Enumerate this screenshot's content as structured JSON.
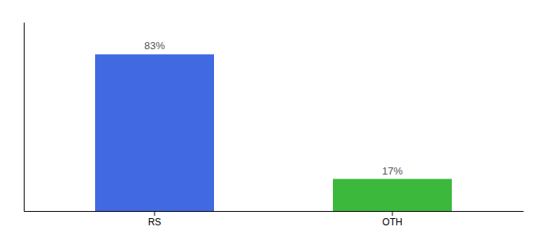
{
  "chart_data": {
    "type": "bar",
    "categories": [
      "RS",
      "OTH"
    ],
    "values": [
      83,
      17
    ],
    "value_labels": [
      "83%",
      "17%"
    ],
    "colors": [
      "#4169e1",
      "#3cb83c"
    ],
    "ylim": [
      0,
      100
    ],
    "grid": false,
    "data_labels": true,
    "tick_labels": "x"
  }
}
